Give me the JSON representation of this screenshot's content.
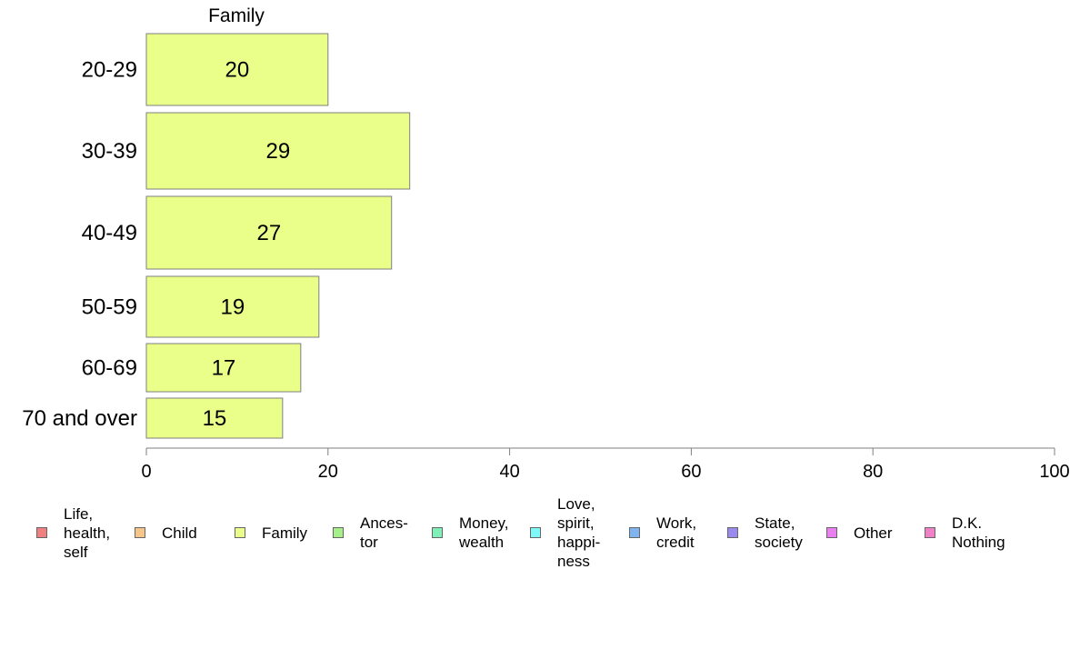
{
  "chart_data": {
    "type": "bar",
    "orientation": "horizontal",
    "title": "Family",
    "categories": [
      "20-29",
      "30-39",
      "40-49",
      "50-59",
      "60-69",
      "70 and over"
    ],
    "series": [
      {
        "name": "Family",
        "values": [
          20,
          29,
          27,
          19,
          17,
          15
        ],
        "color": "#eaff8a"
      }
    ],
    "data_labels": [
      "20",
      "29",
      "27",
      "19",
      "17",
      "15"
    ],
    "xlim": [
      0,
      100
    ],
    "xticks": [
      0,
      20,
      40,
      60,
      80,
      100
    ],
    "xlabel": "",
    "ylabel": "",
    "grid": false,
    "legend": {
      "placement": "bottom",
      "items": [
        {
          "label": "Life,\nhealth,\nself",
          "color": "#f08080"
        },
        {
          "label": "Child",
          "color": "#f6c58a"
        },
        {
          "label": "Family",
          "color": "#eaff8a"
        },
        {
          "label": "Ances-\ntor",
          "color": "#a6f08a"
        },
        {
          "label": "Money,\nwealth",
          "color": "#80f0b8"
        },
        {
          "label": "Love,\nspirit,\nhappi-\nness",
          "color": "#80f8f8"
        },
        {
          "label": "Work,\ncredit",
          "color": "#80b4f0"
        },
        {
          "label": "State,\nsociety",
          "color": "#9a8af0"
        },
        {
          "label": "Other",
          "color": "#e880f0"
        },
        {
          "label": "D.K.\nNothing",
          "color": "#f080c8"
        }
      ]
    }
  }
}
